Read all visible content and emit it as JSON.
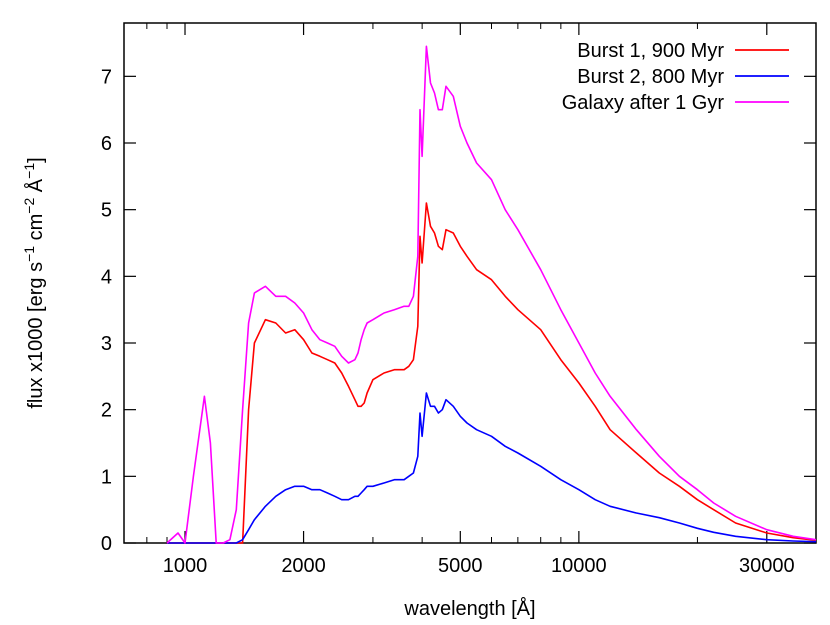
{
  "chart_data": {
    "type": "line",
    "title": "",
    "xlabel": "wavelength [Å]",
    "ylabel": "flux x1000 [erg s^-1 cm^-2 Å^-1]",
    "ylabel_parts": {
      "base": "flux x1000 [erg s",
      "sup1": "−1",
      "mid1": " cm",
      "sup2": "−2",
      "mid2": " Å",
      "sup3": "−1",
      "end": "]"
    },
    "x_scale": "log",
    "xlim": [
      700,
      40000
    ],
    "ylim": [
      0,
      7.8
    ],
    "x_ticks": [
      1000,
      2000,
      5000,
      10000,
      30000
    ],
    "x_tick_labels": [
      "1000",
      "2000",
      "5000",
      "10000",
      "30000"
    ],
    "y_ticks": [
      0,
      1,
      2,
      3,
      4,
      5,
      6,
      7
    ],
    "y_tick_labels": [
      "0",
      "1",
      "2",
      "3",
      "4",
      "5",
      "6",
      "7"
    ],
    "grid": false,
    "legend_position": "top-right",
    "series": [
      {
        "name": "Burst 1, 900 Myr",
        "color": "#ff0000",
        "x": [
          900,
          960,
          1000,
          1050,
          1120,
          1160,
          1200,
          1250,
          1300,
          1350,
          1400,
          1450,
          1500,
          1600,
          1700,
          1800,
          1900,
          2000,
          2100,
          2200,
          2300,
          2400,
          2500,
          2600,
          2700,
          2750,
          2800,
          2850,
          2900,
          3000,
          3200,
          3400,
          3600,
          3700,
          3800,
          3900,
          3950,
          4000,
          4100,
          4200,
          4300,
          4400,
          4500,
          4600,
          4800,
          5000,
          5200,
          5500,
          6000,
          6500,
          7000,
          8000,
          9000,
          10000,
          11000,
          12000,
          14000,
          16000,
          18000,
          20000,
          22000,
          25000,
          30000,
          35000,
          40000
        ],
        "y": [
          0,
          0,
          0,
          0,
          0,
          0,
          0,
          0,
          0,
          0,
          0,
          2.0,
          3.0,
          3.35,
          3.3,
          3.15,
          3.2,
          3.05,
          2.85,
          2.8,
          2.75,
          2.7,
          2.55,
          2.35,
          2.15,
          2.05,
          2.05,
          2.1,
          2.25,
          2.45,
          2.55,
          2.6,
          2.6,
          2.65,
          2.75,
          3.25,
          4.6,
          4.2,
          5.1,
          4.75,
          4.65,
          4.45,
          4.4,
          4.7,
          4.65,
          4.45,
          4.3,
          4.1,
          3.95,
          3.7,
          3.5,
          3.2,
          2.75,
          2.4,
          2.05,
          1.7,
          1.35,
          1.05,
          0.85,
          0.65,
          0.5,
          0.3,
          0.15,
          0.08,
          0.04
        ]
      },
      {
        "name": "Burst 2, 800 Myr",
        "color": "#0000ff",
        "x": [
          900,
          960,
          1000,
          1050,
          1120,
          1160,
          1200,
          1250,
          1300,
          1350,
          1400,
          1450,
          1500,
          1600,
          1700,
          1800,
          1900,
          2000,
          2100,
          2200,
          2300,
          2400,
          2500,
          2600,
          2700,
          2750,
          2800,
          2850,
          2900,
          3000,
          3200,
          3400,
          3600,
          3700,
          3800,
          3900,
          3950,
          4000,
          4100,
          4200,
          4300,
          4400,
          4500,
          4600,
          4800,
          5000,
          5200,
          5500,
          6000,
          6500,
          7000,
          8000,
          9000,
          10000,
          11000,
          12000,
          14000,
          16000,
          18000,
          20000,
          22000,
          25000,
          30000,
          35000,
          40000
        ],
        "y": [
          0,
          0,
          0,
          0,
          0,
          0,
          0,
          0,
          0,
          0,
          0.05,
          0.2,
          0.35,
          0.55,
          0.7,
          0.8,
          0.85,
          0.85,
          0.8,
          0.8,
          0.75,
          0.7,
          0.65,
          0.65,
          0.7,
          0.7,
          0.75,
          0.8,
          0.85,
          0.85,
          0.9,
          0.95,
          0.95,
          1.0,
          1.05,
          1.3,
          1.95,
          1.6,
          2.25,
          2.05,
          2.05,
          1.95,
          2.0,
          2.15,
          2.05,
          1.9,
          1.8,
          1.7,
          1.6,
          1.45,
          1.35,
          1.15,
          0.95,
          0.8,
          0.65,
          0.55,
          0.45,
          0.38,
          0.3,
          0.22,
          0.16,
          0.1,
          0.05,
          0.03,
          0.02
        ]
      },
      {
        "name": "Galaxy after 1 Gyr",
        "color": "#ff00ff",
        "x": [
          900,
          960,
          1000,
          1050,
          1120,
          1160,
          1200,
          1250,
          1300,
          1350,
          1400,
          1450,
          1500,
          1600,
          1700,
          1800,
          1900,
          2000,
          2100,
          2200,
          2300,
          2400,
          2500,
          2600,
          2700,
          2750,
          2800,
          2850,
          2900,
          3000,
          3200,
          3400,
          3600,
          3700,
          3800,
          3900,
          3950,
          4000,
          4100,
          4200,
          4300,
          4400,
          4500,
          4600,
          4800,
          5000,
          5200,
          5500,
          6000,
          6500,
          7000,
          8000,
          9000,
          10000,
          11000,
          12000,
          14000,
          16000,
          18000,
          20000,
          22000,
          25000,
          30000,
          35000,
          40000
        ],
        "y": [
          0,
          0.15,
          0,
          1.0,
          2.2,
          1.5,
          0,
          0,
          0.05,
          0.5,
          2.0,
          3.3,
          3.75,
          3.85,
          3.7,
          3.7,
          3.6,
          3.45,
          3.2,
          3.05,
          3.0,
          2.95,
          2.8,
          2.7,
          2.75,
          2.85,
          3.05,
          3.2,
          3.3,
          3.35,
          3.45,
          3.5,
          3.55,
          3.55,
          3.7,
          4.3,
          6.5,
          5.8,
          7.45,
          6.9,
          6.75,
          6.5,
          6.5,
          6.85,
          6.7,
          6.25,
          6.0,
          5.7,
          5.45,
          5.0,
          4.7,
          4.1,
          3.5,
          3.0,
          2.55,
          2.2,
          1.7,
          1.3,
          1.0,
          0.8,
          0.6,
          0.4,
          0.2,
          0.1,
          0.05
        ]
      }
    ]
  }
}
